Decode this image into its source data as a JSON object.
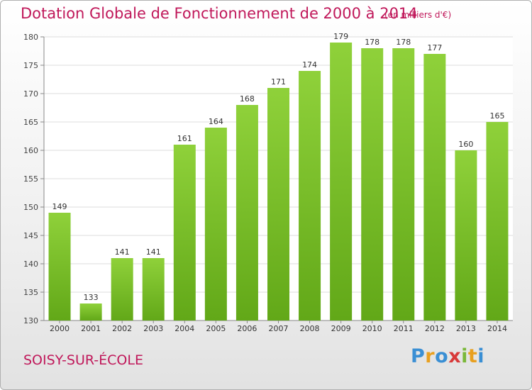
{
  "chart_data": {
    "type": "bar",
    "title": "Dotation Globale de Fonctionnement de 2000 à 2014",
    "subtitle": "(en milliers d'€)",
    "categories": [
      "2000",
      "2001",
      "2002",
      "2003",
      "2004",
      "2005",
      "2006",
      "2007",
      "2008",
      "2009",
      "2010",
      "2011",
      "2012",
      "2013",
      "2014"
    ],
    "values": [
      149,
      133,
      141,
      141,
      161,
      164,
      168,
      171,
      174,
      179,
      178,
      178,
      177,
      160,
      165
    ],
    "ylim": [
      130,
      180
    ],
    "yticks": [
      130,
      135,
      140,
      145,
      150,
      155,
      160,
      165,
      170,
      175,
      180
    ],
    "grid": true,
    "bar_color": "#7fbf2a",
    "legend": "none"
  },
  "commune": "SOISY-SUR-ÉCOLE",
  "brand": {
    "letters": [
      "P",
      "r",
      "o",
      "x",
      "i",
      "t",
      "i"
    ],
    "colors": [
      "#3a8fd4",
      "#e8a020",
      "#3a8fd4",
      "#d83a3a",
      "#7ab83a",
      "#e8a020",
      "#3a8fd4"
    ]
  }
}
